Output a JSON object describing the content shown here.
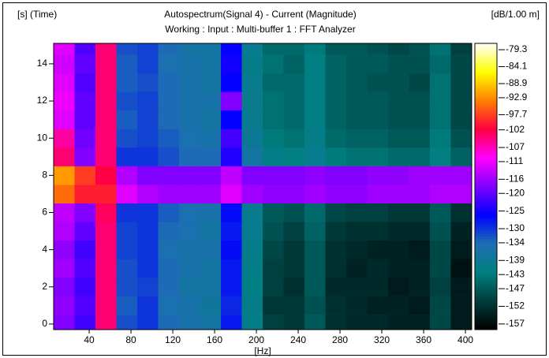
{
  "chart_data": {
    "type": "heatmap",
    "y_axis_label": "[s] (Time)",
    "title": "Autospectrum(Signal 4) - Current (Magnitude)",
    "subtitle": "Working : Input : Multi-buffer 1 : FFT Analyzer",
    "colorbar_label": "[dB/1.00 m]",
    "x_axis_label": "[Hz]",
    "xlim": [
      6,
      406
    ],
    "xticks": [
      40,
      80,
      120,
      160,
      200,
      240,
      280,
      320,
      360,
      400
    ],
    "ylim": [
      -0.3,
      15.1
    ],
    "yticks": [
      0,
      2,
      4,
      6,
      8,
      10,
      12,
      14
    ],
    "zlim": [
      -158.6,
      -77.5
    ],
    "zticks": [
      -79.3,
      -84.1,
      -88.9,
      -92.9,
      -97.7,
      -102,
      -107,
      -111,
      -116,
      -120,
      -125,
      -130,
      -134,
      -139,
      -143,
      -147,
      -152,
      -157
    ],
    "colormap": [
      "#000000",
      "#003c3c",
      "#008080",
      "#1e6eb4",
      "#0000ff",
      "#8000ff",
      "#ff00ff",
      "#ff0040",
      "#ff8000",
      "#ffff00",
      "#ffffff"
    ],
    "x_bins": [
      6,
      26,
      46,
      66,
      86,
      106,
      126,
      146,
      166,
      186,
      206,
      226,
      246,
      266,
      286,
      306,
      326,
      346,
      366,
      386,
      406
    ],
    "y_bins": [
      -0.3,
      0.5,
      1.5,
      2.5,
      3.5,
      4.5,
      5.5,
      6.5,
      7.5,
      8.5,
      9.5,
      10.5,
      11.5,
      12.5,
      13.5,
      14.5,
      15.1
    ],
    "z": [
      [
        -118,
        -122,
        -104,
        -132,
        -130,
        -134,
        -136,
        -137,
        -128,
        -141,
        -150,
        -151,
        -147,
        -152,
        -153,
        -153,
        -154,
        -154,
        -149,
        -155
      ],
      [
        -117,
        -121,
        -104,
        -133,
        -130,
        -135,
        -136,
        -138,
        -129,
        -141,
        -151,
        -151,
        -148,
        -152,
        -153,
        -154,
        -154,
        -155,
        -149,
        -155
      ],
      [
        -118,
        -122,
        -104,
        -132,
        -131,
        -134,
        -137,
        -137,
        -128,
        -142,
        -150,
        -152,
        -147,
        -153,
        -153,
        -153,
        -155,
        -154,
        -150,
        -155
      ],
      [
        -116,
        -121,
        -104,
        -132,
        -130,
        -134,
        -136,
        -137,
        -128,
        -141,
        -150,
        -151,
        -147,
        -152,
        -154,
        -153,
        -154,
        -154,
        -149,
        -156
      ],
      [
        -117,
        -122,
        -104,
        -131,
        -130,
        -135,
        -136,
        -136,
        -127,
        -141,
        -149,
        -151,
        -147,
        -152,
        -153,
        -154,
        -154,
        -155,
        -149,
        -155
      ],
      [
        -115,
        -120,
        -104,
        -131,
        -130,
        -134,
        -135,
        -137,
        -128,
        -140,
        -148,
        -150,
        -146,
        -151,
        -152,
        -152,
        -153,
        -153,
        -148,
        -154
      ],
      [
        -114,
        -118,
        -103,
        -130,
        -130,
        -133,
        -135,
        -136,
        -127,
        -140,
        -147,
        -148,
        -145,
        -149,
        -150,
        -150,
        -151,
        -151,
        -147,
        -152
      ],
      [
        -95,
        -100,
        -100,
        -112,
        -115,
        -116,
        -116,
        -116,
        -112,
        -116,
        -117,
        -117,
        -116,
        -117,
        -117,
        -116,
        -116,
        -116,
        -115,
        -115
      ],
      [
        -92,
        -98,
        -102,
        -115,
        -118,
        -118,
        -118,
        -118,
        -114,
        -118,
        -118,
        -118,
        -117,
        -118,
        -118,
        -117,
        -117,
        -116,
        -116,
        -116
      ],
      [
        -104,
        -118,
        -104,
        -130,
        -130,
        -132,
        -134,
        -134,
        -124,
        -137,
        -141,
        -142,
        -140,
        -143,
        -144,
        -144,
        -145,
        -145,
        -142,
        -146
      ],
      [
        -106,
        -119,
        -104,
        -132,
        -131,
        -133,
        -135,
        -136,
        -122,
        -139,
        -143,
        -144,
        -141,
        -145,
        -146,
        -146,
        -147,
        -147,
        -143,
        -148
      ],
      [
        -112,
        -120,
        -104,
        -133,
        -131,
        -134,
        -136,
        -137,
        -126,
        -140,
        -144,
        -145,
        -142,
        -146,
        -147,
        -147,
        -148,
        -148,
        -144,
        -149
      ],
      [
        -111,
        -120,
        -104,
        -132,
        -131,
        -134,
        -136,
        -136,
        -118,
        -140,
        -144,
        -145,
        -142,
        -146,
        -147,
        -147,
        -148,
        -148,
        -144,
        -149
      ],
      [
        -112,
        -121,
        -104,
        -133,
        -132,
        -134,
        -136,
        -137,
        -126,
        -140,
        -145,
        -145,
        -142,
        -146,
        -147,
        -148,
        -148,
        -149,
        -144,
        -149
      ],
      [
        -113,
        -120,
        -104,
        -133,
        -131,
        -135,
        -136,
        -137,
        -125,
        -141,
        -144,
        -146,
        -142,
        -146,
        -147,
        -147,
        -148,
        -148,
        -145,
        -149
      ],
      [
        -112,
        -121,
        -104,
        -132,
        -131,
        -134,
        -137,
        -137,
        -126,
        -140,
        -145,
        -145,
        -143,
        -147,
        -147,
        -148,
        -149,
        -148,
        -144,
        -150
      ]
    ]
  }
}
